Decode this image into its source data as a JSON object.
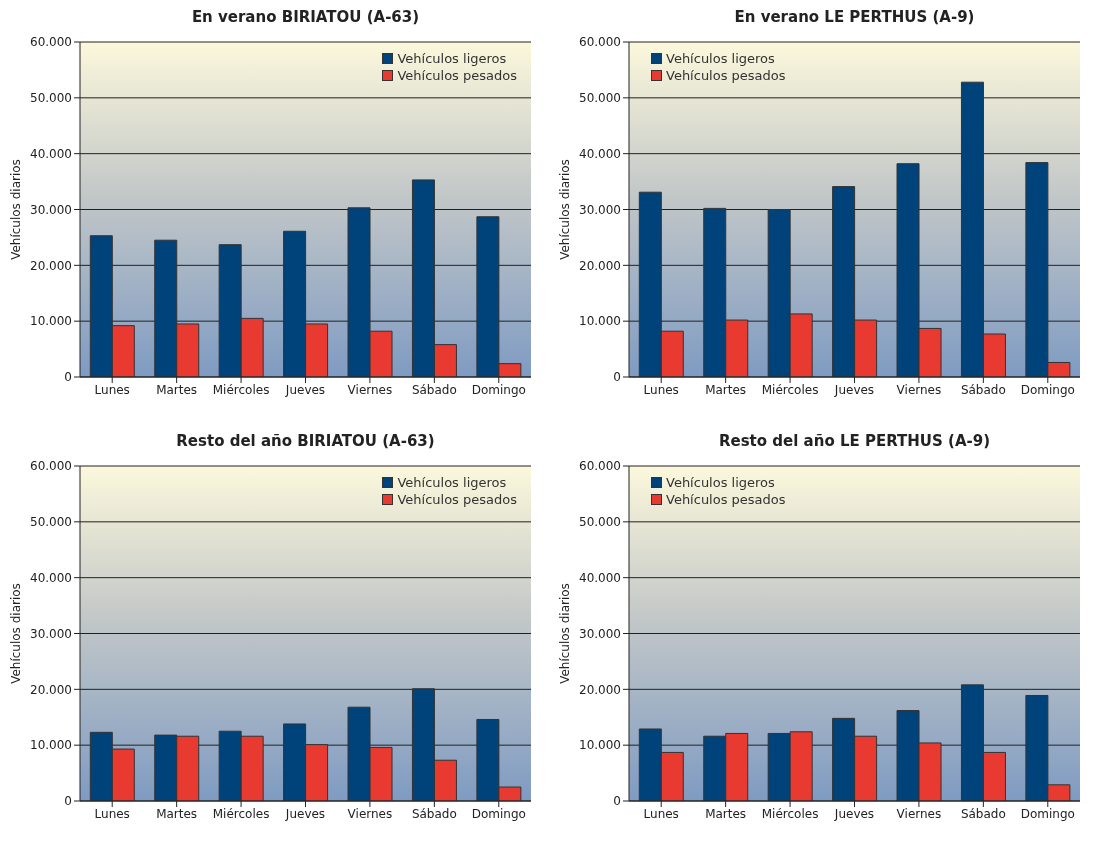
{
  "chart_data": [
    {
      "type": "bar",
      "title": "En verano BIRIATOU (A-63)",
      "ylabel": "Vehículos diarios",
      "categories": [
        "Lunes",
        "Martes",
        "Miércoles",
        "Jueves",
        "Viernes",
        "Sábado",
        "Domingo"
      ],
      "series": [
        {
          "name": "Vehículos ligeros",
          "color": "#00427a",
          "values": [
            25300,
            24500,
            23700,
            26100,
            30300,
            35300,
            28700
          ]
        },
        {
          "name": "Vehículos pesados",
          "color": "#e83a30",
          "values": [
            9200,
            9500,
            10500,
            9500,
            8200,
            5800,
            2400
          ]
        }
      ],
      "ylim": [
        0,
        60000
      ],
      "yticks": [
        {
          "value": 0,
          "label": "0"
        },
        {
          "value": 10000,
          "label": "10.000"
        },
        {
          "value": 20000,
          "label": "20.000"
        },
        {
          "value": 30000,
          "label": "30.000"
        },
        {
          "value": 40000,
          "label": "40.000"
        },
        {
          "value": 50000,
          "label": "50.000"
        },
        {
          "value": 60000,
          "label": "60.000"
        }
      ],
      "grid": "y",
      "legend": "top right"
    },
    {
      "type": "bar",
      "title": "En verano LE PERTHUS (A-9)",
      "ylabel": "Vehículos diarios",
      "categories": [
        "Lunes",
        "Martes",
        "Miércoles",
        "Jueves",
        "Viernes",
        "Sábado",
        "Domingo"
      ],
      "series": [
        {
          "name": "Vehículos ligeros",
          "color": "#00427a",
          "values": [
            33100,
            30200,
            30000,
            34100,
            38200,
            52800,
            38400
          ]
        },
        {
          "name": "Vehículos pesados",
          "color": "#e83a30",
          "values": [
            8200,
            10200,
            11300,
            10200,
            8700,
            7700,
            2600
          ]
        }
      ],
      "ylim": [
        0,
        60000
      ],
      "yticks": [
        {
          "value": 0,
          "label": "0"
        },
        {
          "value": 10000,
          "label": "10.000"
        },
        {
          "value": 20000,
          "label": "20.000"
        },
        {
          "value": 30000,
          "label": "30.000"
        },
        {
          "value": 40000,
          "label": "40.000"
        },
        {
          "value": 50000,
          "label": "50.000"
        },
        {
          "value": 60000,
          "label": "60.000"
        }
      ],
      "grid": "y",
      "legend": "top left"
    },
    {
      "type": "bar",
      "title": "Resto del año BIRIATOU (A-63)",
      "ylabel": "Vehículos diarios",
      "categories": [
        "Lunes",
        "Martes",
        "Miércoles",
        "Jueves",
        "Viernes",
        "Sábado",
        "Domingo"
      ],
      "series": [
        {
          "name": "Vehículos ligeros",
          "color": "#00427a",
          "values": [
            12300,
            11800,
            12500,
            13800,
            16800,
            20100,
            14600
          ]
        },
        {
          "name": "Vehículos pesados",
          "color": "#e83a30",
          "values": [
            9300,
            11600,
            11600,
            10100,
            9600,
            7300,
            2500
          ]
        }
      ],
      "ylim": [
        0,
        60000
      ],
      "yticks": [
        {
          "value": 0,
          "label": "0"
        },
        {
          "value": 10000,
          "label": "10.000"
        },
        {
          "value": 20000,
          "label": "20.000"
        },
        {
          "value": 30000,
          "label": "30.000"
        },
        {
          "value": 40000,
          "label": "40.000"
        },
        {
          "value": 50000,
          "label": "50.000"
        },
        {
          "value": 60000,
          "label": "60.000"
        }
      ],
      "grid": "y",
      "legend": "top right"
    },
    {
      "type": "bar",
      "title": "Resto del año LE PERTHUS (A-9)",
      "ylabel": "Vehículos diarios",
      "categories": [
        "Lunes",
        "Martes",
        "Miércoles",
        "Jueves",
        "Viernes",
        "Sábado",
        "Domingo"
      ],
      "series": [
        {
          "name": "Vehículos ligeros",
          "color": "#00427a",
          "values": [
            12900,
            11600,
            12100,
            14800,
            16200,
            20800,
            18900
          ]
        },
        {
          "name": "Vehículos pesados",
          "color": "#e83a30",
          "values": [
            8700,
            12100,
            12400,
            11600,
            10400,
            8700,
            2900
          ]
        }
      ],
      "ylim": [
        0,
        60000
      ],
      "yticks": [
        {
          "value": 0,
          "label": "0"
        },
        {
          "value": 10000,
          "label": "10.000"
        },
        {
          "value": 20000,
          "label": "20.000"
        },
        {
          "value": 30000,
          "label": "30.000"
        },
        {
          "value": 40000,
          "label": "40.000"
        },
        {
          "value": 50000,
          "label": "50.000"
        },
        {
          "value": 60000,
          "label": "60.000"
        }
      ],
      "grid": "y",
      "legend": "top left"
    }
  ]
}
